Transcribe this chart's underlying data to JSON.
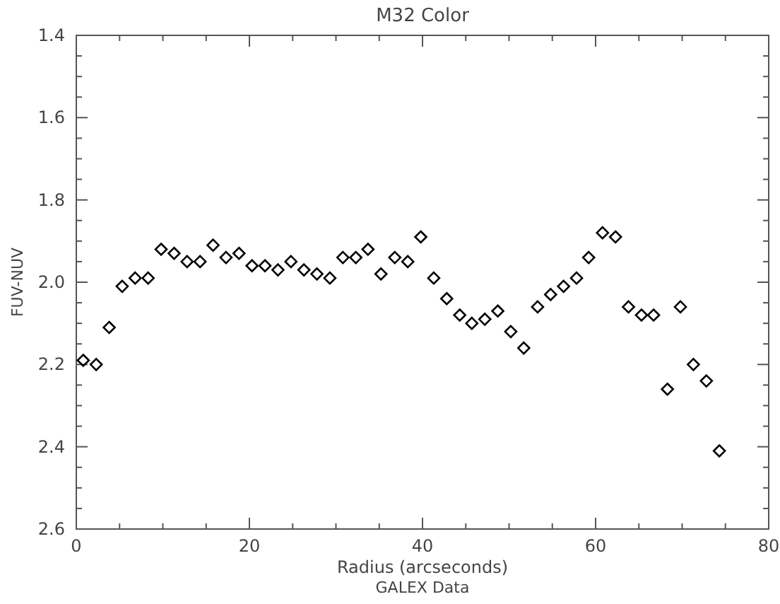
{
  "chart_data": {
    "type": "scatter",
    "title": "M32 Color",
    "xlabel": "Radius (arcseconds)",
    "ylabel": "FUV-NUV",
    "annotations": [
      "GALEX Data"
    ],
    "marker": "diamond",
    "grid": false,
    "xlim": [
      0,
      80
    ],
    "xticks": [
      0,
      {
        "value": 5,
        "label": null
      },
      {
        "value": 10,
        "label": null
      },
      {
        "value": 15,
        "label": null
      },
      20,
      {
        "value": 25,
        "label": null
      },
      {
        "value": 30,
        "label": null
      },
      {
        "value": 35,
        "label": null
      },
      40,
      {
        "value": 45,
        "label": null
      },
      {
        "value": 50,
        "label": null
      },
      {
        "value": 55,
        "label": null
      },
      60,
      {
        "value": 65,
        "label": null
      },
      {
        "value": 70,
        "label": null
      },
      {
        "value": 75,
        "label": null
      },
      80
    ],
    "ylim": [
      2.6,
      1.4
    ],
    "yticks": [
      {
        "value": 1.4,
        "label": "1.4"
      },
      {
        "value": 1.45,
        "label": null
      },
      {
        "value": 1.5,
        "label": null
      },
      {
        "value": 1.55,
        "label": null
      },
      {
        "value": 1.6,
        "label": "1.6"
      },
      {
        "value": 1.65,
        "label": null
      },
      {
        "value": 1.7,
        "label": null
      },
      {
        "value": 1.75,
        "label": null
      },
      {
        "value": 1.8,
        "label": "1.8"
      },
      {
        "value": 1.85,
        "label": null
      },
      {
        "value": 1.9,
        "label": null
      },
      {
        "value": 1.95,
        "label": null
      },
      {
        "value": 2.0,
        "label": "2.0"
      },
      {
        "value": 2.05,
        "label": null
      },
      {
        "value": 2.1,
        "label": null
      },
      {
        "value": 2.15,
        "label": null
      },
      {
        "value": 2.2,
        "label": "2.2"
      },
      {
        "value": 2.25,
        "label": null
      },
      {
        "value": 2.3,
        "label": null
      },
      {
        "value": 2.35,
        "label": null
      },
      {
        "value": 2.4,
        "label": "2.4"
      },
      {
        "value": 2.45,
        "label": null
      },
      {
        "value": 2.5,
        "label": null
      },
      {
        "value": 2.55,
        "label": null
      },
      {
        "value": 2.6,
        "label": "2.6"
      }
    ],
    "series": [
      {
        "color": "#000000",
        "x": [
          0.8,
          2.3,
          3.8,
          5.3,
          6.8,
          8.3,
          9.8,
          11.3,
          12.8,
          14.3,
          15.8,
          17.3,
          18.8,
          20.3,
          21.8,
          23.3,
          24.8,
          26.3,
          27.8,
          29.3,
          30.8,
          32.3,
          33.7,
          35.2,
          36.8,
          38.3,
          39.8,
          41.3,
          42.8,
          44.3,
          45.7,
          47.2,
          48.7,
          50.2,
          51.7,
          53.3,
          54.8,
          56.3,
          57.8,
          59.2,
          60.8,
          62.3,
          63.8,
          65.3,
          66.7,
          68.3,
          69.8,
          71.3,
          72.8,
          74.3
        ],
        "values": [
          2.19,
          2.2,
          2.11,
          2.01,
          1.99,
          1.99,
          1.92,
          1.93,
          1.95,
          1.95,
          1.91,
          1.94,
          1.93,
          1.96,
          1.96,
          1.97,
          1.95,
          1.97,
          1.98,
          1.99,
          1.94,
          1.94,
          1.92,
          1.98,
          1.94,
          1.95,
          1.89,
          1.99,
          2.04,
          2.08,
          2.1,
          2.09,
          2.07,
          2.12,
          2.16,
          2.06,
          2.03,
          2.01,
          1.99,
          1.94,
          1.88,
          1.89,
          2.06,
          2.08,
          2.08,
          2.26,
          2.06,
          2.2,
          2.24,
          2.41
        ]
      }
    ]
  }
}
